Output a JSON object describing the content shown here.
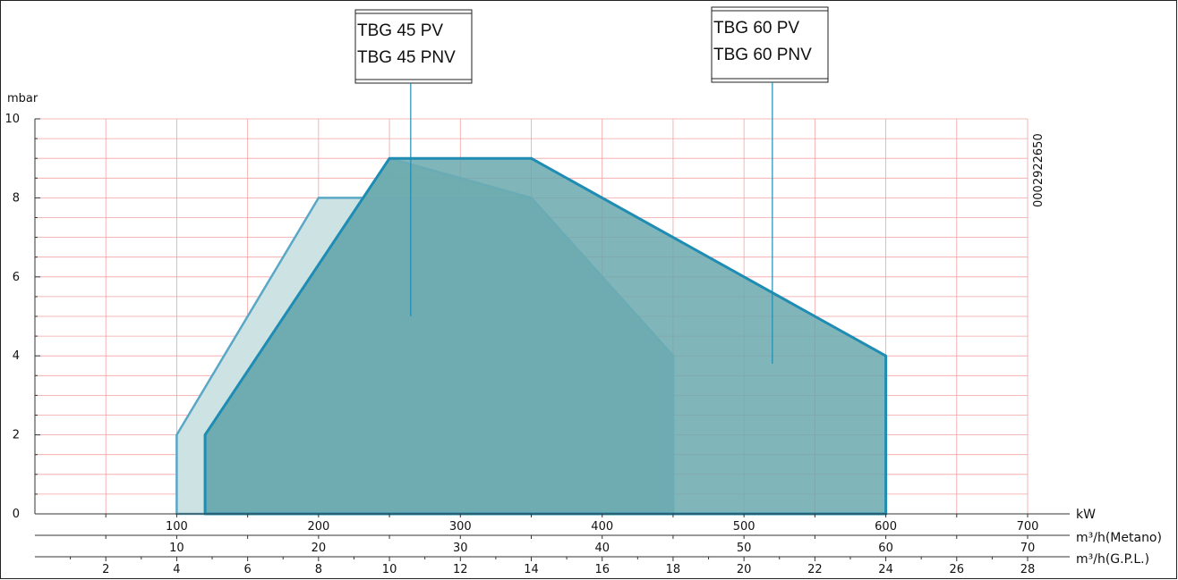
{
  "chart_data": {
    "type": "area",
    "code": "0002922650",
    "ylabel": "mbar",
    "ylim": [
      0,
      10
    ],
    "yticks": [
      0,
      2,
      4,
      6,
      8,
      10
    ],
    "xlim_kw": [
      0,
      700
    ],
    "x_axes": [
      {
        "name": "kW",
        "ticks": [
          100,
          200,
          300,
          400,
          500,
          600,
          700
        ]
      },
      {
        "name": "m³/h(Metano)",
        "ticks": [
          10,
          20,
          30,
          40,
          50,
          60,
          70
        ]
      },
      {
        "name": "m³/h(G.P.L.)",
        "ticks": [
          2,
          4,
          6,
          8,
          10,
          12,
          14,
          16,
          18,
          20,
          22,
          24,
          26,
          28
        ]
      }
    ],
    "series": [
      {
        "name": "TBG 45 PV",
        "color": "#5aa7c6",
        "fill": "#cde2e2",
        "points": [
          [
            100,
            0
          ],
          [
            100,
            2
          ],
          [
            200,
            8
          ],
          [
            350,
            8
          ],
          [
            450,
            4
          ],
          [
            450,
            0
          ]
        ]
      },
      {
        "name": "TBG 45 PNV",
        "color": "#6fb8d8",
        "fill": "#7fbfbc",
        "points": [
          [
            120,
            0
          ],
          [
            120,
            2
          ],
          [
            250,
            9
          ],
          [
            350,
            8
          ],
          [
            450,
            4
          ],
          [
            450,
            0
          ]
        ]
      },
      {
        "name": "TBG 60 PV",
        "color": "#1f8db3",
        "fill": "#6aa8ae",
        "points": [
          [
            120,
            0
          ],
          [
            120,
            2
          ],
          [
            250,
            9
          ],
          [
            350,
            9
          ],
          [
            600,
            4
          ],
          [
            600,
            0
          ]
        ]
      }
    ],
    "labels": [
      {
        "lines": [
          "TBG 45 PV",
          "TBG 45 PNV"
        ],
        "pointer": [
          265,
          5
        ]
      },
      {
        "lines": [
          "TBG 60 PV",
          "TBG 60 PNV"
        ],
        "pointer": [
          520,
          3.8
        ]
      }
    ]
  }
}
